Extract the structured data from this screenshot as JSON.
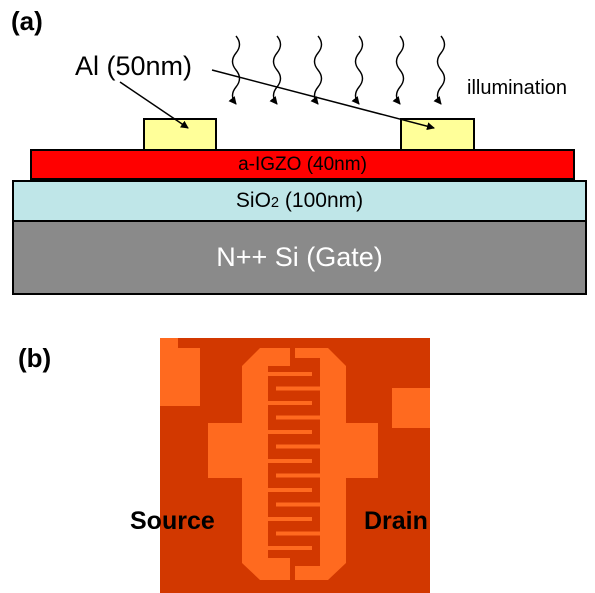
{
  "panel_a": {
    "label": "(a)",
    "al_label": "Al (50nm)",
    "illumination_label": "illumination",
    "channel_label": "a-IGZO (40nm)",
    "oxide_label_pre": "SiO",
    "oxide_label_sub": "2",
    "oxide_label_post": " (100nm)",
    "gate_label": "N++ Si (Gate)",
    "colors": {
      "gate": "#8a8a8a",
      "oxide": "#bfe6e8",
      "channel": "#ff0000",
      "contact": "#ffff99"
    }
  },
  "panel_b": {
    "label": "(b)",
    "source_label": "Source",
    "drain_label": "Drain",
    "colors": {
      "background": "#d23800",
      "electrode": "#ff6a1f"
    }
  }
}
